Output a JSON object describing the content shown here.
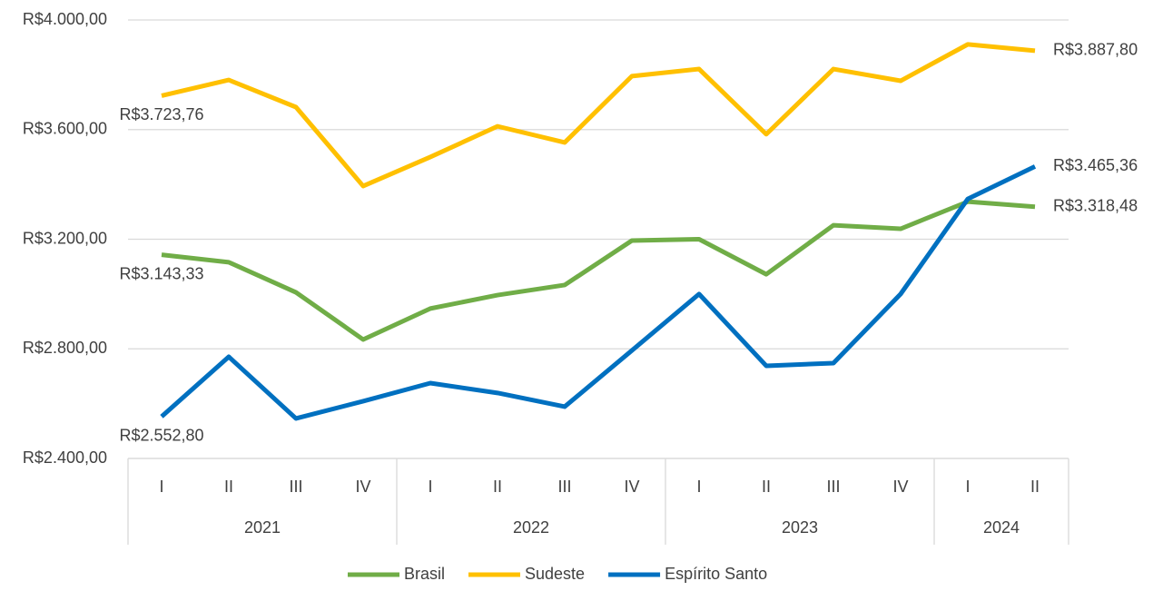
{
  "chart_data": {
    "type": "line",
    "categories": [
      "I",
      "II",
      "III",
      "IV",
      "I",
      "II",
      "III",
      "IV",
      "I",
      "II",
      "III",
      "IV",
      "I",
      "II"
    ],
    "category_groups": [
      "2021",
      "2021",
      "2021",
      "2021",
      "2022",
      "2022",
      "2022",
      "2022",
      "2023",
      "2023",
      "2023",
      "2023",
      "2024",
      "2024"
    ],
    "series": [
      {
        "name": "Brasil",
        "color": "#70ad47",
        "values": [
          3143.33,
          3116,
          3006,
          2834,
          2947,
          2996,
          3033,
          3195,
          3200,
          3072,
          3251,
          3238,
          3337,
          3318.48
        ],
        "value_labels": [
          "R$3.143,33",
          null,
          null,
          null,
          null,
          null,
          null,
          null,
          null,
          null,
          null,
          null,
          null,
          "R$3.318,48"
        ]
      },
      {
        "name": "Sudeste",
        "color": "#ffc000",
        "values": [
          3723.76,
          3781,
          3682,
          3394,
          3500,
          3612,
          3553,
          3795,
          3821,
          3583,
          3821,
          3778,
          3911,
          3887.8
        ],
        "value_labels": [
          "R$3.723,76",
          null,
          null,
          null,
          null,
          null,
          null,
          null,
          null,
          null,
          null,
          null,
          null,
          "R$3.887,80"
        ]
      },
      {
        "name": "Espírito Santo",
        "color": "#0070c0",
        "values": [
          2552.8,
          2771,
          2546,
          2609,
          2675,
          2639,
          2589,
          2794,
          3000,
          2738,
          2748,
          3000,
          3347,
          3465.36
        ],
        "value_labels": [
          "R$2.552,80",
          null,
          null,
          null,
          null,
          null,
          null,
          null,
          null,
          null,
          null,
          null,
          null,
          "R$3.465,36"
        ]
      }
    ],
    "ylim": [
      2400,
      4000
    ],
    "yticks": [
      {
        "value": 2400,
        "label": "R$2.400,00"
      },
      {
        "value": 2800,
        "label": "R$2.800,00"
      },
      {
        "value": 3200,
        "label": "R$3.200,00"
      },
      {
        "value": 3600,
        "label": "R$3.600,00"
      },
      {
        "value": 4000,
        "label": "R$4.000,00"
      }
    ],
    "grid": true,
    "legend": "bottom"
  }
}
